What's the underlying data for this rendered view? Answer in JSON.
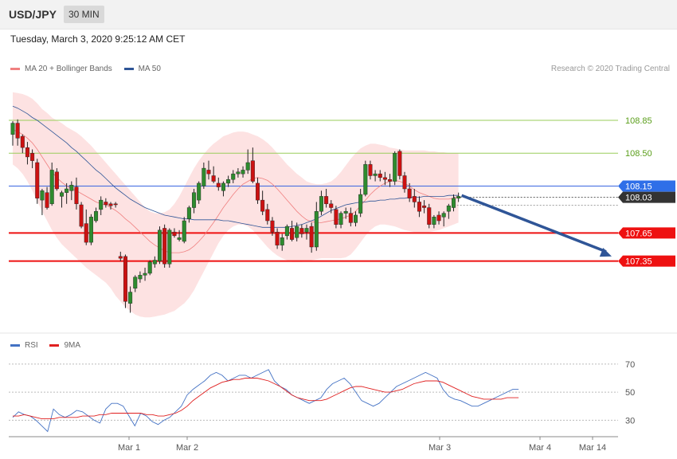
{
  "header": {
    "pair": "USD/JPY",
    "timeframe": "30 MIN"
  },
  "datetime": "Tuesday, March 3, 2020 9:25:12 AM CET",
  "legend": {
    "ma20": "MA 20 + Bollinger Bands",
    "ma50": "MA 50",
    "rsi": "RSI",
    "ma9": "9MA"
  },
  "credit": "Research © 2020 Trading Central",
  "colors": {
    "bull": "#2e8b2e",
    "bear": "#cc1111",
    "band": "#fde2e2",
    "ma20": "#f08080",
    "ma50": "#2f5597",
    "green_level": "#9acd5a",
    "red_level": "#ee1111",
    "blue_level": "#3a66e0",
    "arrow": "#2f5597",
    "rsi": "#4472c4",
    "rsi_ma": "#e02020"
  },
  "chart_data": [
    {
      "type": "candlestick",
      "ylim": [
        106.6,
        109.3
      ],
      "x_labels": [
        "Mar 1",
        "Mar 2",
        "Mar 3",
        "Mar 4",
        "Mar 14"
      ],
      "levels": [
        {
          "value": 108.85,
          "label": "108.85",
          "kind": "resistance"
        },
        {
          "value": 108.5,
          "label": "108.50",
          "kind": "resistance"
        },
        {
          "value": 108.15,
          "label": "108.15",
          "kind": "pivot"
        },
        {
          "value": 107.65,
          "label": "107.65",
          "kind": "support"
        },
        {
          "value": 107.35,
          "label": "107.35",
          "kind": "support"
        }
      ],
      "current_price": {
        "value": 108.03,
        "label": "108.03"
      },
      "forecast_arrow": {
        "from": 108.05,
        "to": 107.4
      },
      "candles": [
        [
          108.7,
          108.84,
          108.58,
          108.82
        ],
        [
          108.82,
          108.86,
          108.58,
          108.66
        ],
        [
          108.68,
          108.7,
          108.5,
          108.56
        ],
        [
          108.56,
          108.62,
          108.38,
          108.46
        ],
        [
          108.5,
          108.54,
          108.34,
          108.42
        ],
        [
          108.4,
          108.44,
          107.96,
          108.02
        ],
        [
          108.0,
          108.12,
          107.84,
          108.1
        ],
        [
          108.08,
          108.14,
          107.9,
          107.92
        ],
        [
          107.96,
          108.4,
          107.94,
          108.32
        ],
        [
          108.3,
          108.34,
          108.1,
          108.12
        ],
        [
          108.04,
          108.1,
          107.92,
          108.08
        ],
        [
          108.08,
          108.18,
          107.96,
          108.12
        ],
        [
          108.1,
          108.2,
          108.0,
          108.16
        ],
        [
          108.14,
          108.24,
          107.9,
          107.96
        ],
        [
          107.95,
          107.98,
          107.7,
          107.72
        ],
        [
          107.75,
          107.9,
          107.52,
          107.55
        ],
        [
          107.55,
          107.85,
          107.52,
          107.82
        ],
        [
          107.78,
          107.92,
          107.76,
          107.88
        ],
        [
          107.9,
          108.04,
          107.84,
          108.0
        ],
        [
          107.98,
          108.02,
          107.92,
          107.95
        ],
        [
          107.96,
          107.98,
          107.9,
          107.94
        ],
        [
          107.96,
          107.98,
          107.92,
          107.95
        ],
        [
          107.4,
          107.45,
          107.35,
          107.38
        ],
        [
          107.4,
          107.42,
          106.85,
          106.92
        ],
        [
          106.9,
          107.08,
          106.8,
          107.02
        ],
        [
          107.06,
          107.2,
          107.02,
          107.18
        ],
        [
          107.16,
          107.24,
          107.12,
          107.2
        ],
        [
          107.2,
          107.28,
          107.14,
          107.22
        ],
        [
          107.22,
          107.36,
          107.2,
          107.34
        ],
        [
          107.32,
          107.4,
          107.28,
          107.36
        ],
        [
          107.35,
          107.72,
          107.32,
          107.68
        ],
        [
          107.7,
          107.74,
          107.28,
          107.32
        ],
        [
          107.32,
          107.7,
          107.28,
          107.68
        ],
        [
          107.66,
          107.7,
          107.6,
          107.62
        ],
        [
          107.58,
          107.68,
          107.56,
          107.6
        ],
        [
          107.56,
          107.82,
          107.54,
          107.78
        ],
        [
          107.8,
          107.94,
          107.76,
          107.92
        ],
        [
          107.92,
          108.12,
          107.86,
          108.08
        ],
        [
          108.0,
          108.2,
          107.96,
          108.18
        ],
        [
          108.15,
          108.4,
          108.12,
          108.34
        ],
        [
          108.32,
          108.42,
          108.22,
          108.28
        ],
        [
          108.26,
          108.36,
          108.18,
          108.2
        ],
        [
          108.18,
          108.24,
          108.1,
          108.14
        ],
        [
          108.1,
          108.2,
          108.04,
          108.18
        ],
        [
          108.18,
          108.26,
          108.14,
          108.22
        ],
        [
          108.22,
          108.32,
          108.18,
          108.28
        ],
        [
          108.28,
          108.34,
          108.24,
          108.3
        ],
        [
          108.28,
          108.36,
          108.24,
          108.32
        ],
        [
          108.32,
          108.54,
          108.28,
          108.4
        ],
        [
          108.42,
          108.56,
          108.18,
          108.2
        ],
        [
          108.18,
          108.24,
          107.96,
          108.0
        ],
        [
          108.0,
          108.1,
          107.84,
          107.88
        ],
        [
          107.9,
          107.96,
          107.74,
          107.78
        ],
        [
          107.78,
          107.82,
          107.62,
          107.66
        ],
        [
          107.66,
          107.7,
          107.48,
          107.52
        ],
        [
          107.52,
          107.64,
          107.46,
          107.6
        ],
        [
          107.62,
          107.74,
          107.58,
          107.72
        ],
        [
          107.7,
          107.78,
          107.56,
          107.58
        ],
        [
          107.6,
          107.76,
          107.56,
          107.72
        ],
        [
          107.7,
          107.74,
          107.6,
          107.64
        ],
        [
          107.66,
          107.74,
          107.58,
          107.7
        ],
        [
          107.72,
          107.76,
          107.44,
          107.5
        ],
        [
          107.5,
          107.98,
          107.46,
          107.88
        ],
        [
          107.88,
          108.1,
          107.84,
          108.04
        ],
        [
          108.04,
          108.12,
          107.92,
          107.96
        ],
        [
          107.96,
          108.0,
          107.86,
          107.92
        ],
        [
          107.9,
          107.94,
          107.7,
          107.74
        ],
        [
          107.74,
          107.88,
          107.7,
          107.86
        ],
        [
          107.86,
          107.92,
          107.8,
          107.88
        ],
        [
          107.86,
          107.92,
          107.72,
          107.76
        ],
        [
          107.76,
          107.88,
          107.72,
          107.84
        ],
        [
          107.86,
          108.12,
          107.82,
          108.06
        ],
        [
          108.06,
          108.42,
          108.04,
          108.38
        ],
        [
          108.38,
          108.42,
          108.22,
          108.26
        ],
        [
          108.26,
          108.32,
          108.2,
          108.28
        ],
        [
          108.28,
          108.32,
          108.2,
          108.24
        ],
        [
          108.24,
          108.3,
          108.16,
          108.22
        ],
        [
          108.22,
          108.28,
          108.14,
          108.2
        ],
        [
          108.2,
          108.52,
          108.16,
          108.5
        ],
        [
          108.52,
          108.54,
          108.22,
          108.26
        ],
        [
          108.26,
          108.3,
          108.08,
          108.12
        ],
        [
          108.12,
          108.18,
          107.98,
          108.02
        ],
        [
          108.04,
          108.12,
          107.92,
          107.98
        ],
        [
          107.98,
          108.04,
          107.82,
          107.88
        ],
        [
          107.94,
          108.0,
          107.86,
          107.92
        ],
        [
          107.92,
          107.96,
          107.7,
          107.74
        ],
        [
          107.74,
          107.84,
          107.7,
          107.82
        ],
        [
          107.84,
          107.88,
          107.74,
          107.78
        ],
        [
          107.82,
          107.88,
          107.72,
          107.86
        ],
        [
          107.88,
          107.96,
          107.8,
          107.94
        ],
        [
          107.92,
          108.06,
          107.88,
          108.02
        ],
        [
          108.02,
          108.08,
          107.98,
          108.04
        ]
      ],
      "ma20": [
        108.75,
        108.73,
        108.7,
        108.66,
        108.61,
        108.54,
        108.46,
        108.38,
        108.3,
        108.24,
        108.19,
        108.15,
        108.12,
        108.1,
        108.07,
        108.04,
        108.01,
        107.98,
        107.96,
        107.95,
        107.92,
        107.89,
        107.85,
        107.8,
        107.76,
        107.71,
        107.66,
        107.61,
        107.56,
        107.52,
        107.49,
        107.46,
        107.44,
        107.44,
        107.44,
        107.45,
        107.47,
        107.51,
        107.56,
        107.62,
        107.69,
        107.76,
        107.84,
        107.92,
        107.99,
        108.06,
        108.12,
        108.17,
        108.2,
        108.23,
        108.24,
        108.23,
        108.21,
        108.17,
        108.12,
        108.06,
        108.0,
        107.94,
        107.88,
        107.83,
        107.79,
        107.77,
        107.76,
        107.76,
        107.77,
        107.78,
        107.79,
        107.8,
        107.82,
        107.84,
        107.88,
        107.94,
        108.0,
        108.06,
        108.11,
        108.15,
        108.18,
        108.2,
        108.21,
        108.2,
        108.18,
        108.15,
        108.11,
        108.08,
        108.06,
        108.04,
        108.02,
        108.01,
        108.01,
        108.01,
        108.02,
        108.03
      ],
      "bb_upper": [
        109.15,
        109.14,
        109.13,
        109.11,
        109.08,
        109.03,
        108.97,
        108.93,
        108.88,
        108.85,
        108.82,
        108.78,
        108.75,
        108.72,
        108.68,
        108.63,
        108.58,
        108.52,
        108.46,
        108.4,
        108.34,
        108.28,
        108.22,
        108.16,
        108.1,
        108.04,
        107.98,
        107.92,
        107.88,
        107.86,
        107.86,
        107.87,
        107.9,
        107.96,
        108.04,
        108.14,
        108.24,
        108.34,
        108.42,
        108.49,
        108.55,
        108.6,
        108.64,
        108.68,
        108.7,
        108.72,
        108.73,
        108.73,
        108.72,
        108.7,
        108.68,
        108.65,
        108.61,
        108.56,
        108.5,
        108.44,
        108.38,
        108.33,
        108.28,
        108.24,
        108.2,
        108.18,
        108.17,
        108.17,
        108.18,
        108.2,
        108.24,
        108.3,
        108.37,
        108.44,
        108.5,
        108.55,
        108.58,
        108.6,
        108.6,
        108.59,
        108.58,
        108.56,
        108.55,
        108.54,
        108.53,
        108.53,
        108.53,
        108.53,
        108.53,
        108.52,
        108.52,
        108.51,
        108.51,
        108.5,
        108.5,
        108.5
      ],
      "bb_lower": [
        108.38,
        108.34,
        108.28,
        108.2,
        108.1,
        107.99,
        107.88,
        107.78,
        107.68,
        107.6,
        107.53,
        107.48,
        107.43,
        107.38,
        107.33,
        107.28,
        107.24,
        107.2,
        107.16,
        107.12,
        107.06,
        106.98,
        106.92,
        106.86,
        106.82,
        106.78,
        106.76,
        106.75,
        106.75,
        106.76,
        106.77,
        106.78,
        106.8,
        106.82,
        106.86,
        106.9,
        106.96,
        107.04,
        107.14,
        107.24,
        107.34,
        107.44,
        107.54,
        107.62,
        107.68,
        107.72,
        107.74,
        107.74,
        107.72,
        107.68,
        107.62,
        107.56,
        107.5,
        107.45,
        107.41,
        107.38,
        107.36,
        107.34,
        107.34,
        107.34,
        107.35,
        107.36,
        107.37,
        107.38,
        107.38,
        107.38,
        107.38,
        107.38,
        107.39,
        107.42,
        107.48,
        107.55,
        107.62,
        107.68,
        107.72,
        107.74,
        107.74,
        107.73,
        107.72,
        107.7,
        107.68,
        107.67,
        107.66,
        107.66,
        107.66,
        107.66,
        107.67,
        107.68,
        107.7,
        107.72,
        107.74,
        107.76
      ],
      "ma50": [
        109.0,
        108.98,
        108.95,
        108.92,
        108.88,
        108.85,
        108.81,
        108.77,
        108.73,
        108.69,
        108.65,
        108.61,
        108.56,
        108.52,
        108.47,
        108.42,
        108.37,
        108.32,
        108.28,
        108.23,
        108.18,
        108.13,
        108.09,
        108.05,
        108.01,
        107.98,
        107.95,
        107.92,
        107.9,
        107.88,
        107.86,
        107.84,
        107.83,
        107.82,
        107.81,
        107.8,
        107.8,
        107.79,
        107.79,
        107.79,
        107.79,
        107.79,
        107.79,
        107.78,
        107.78,
        107.77,
        107.76,
        107.75,
        107.74,
        107.73,
        107.72,
        107.71,
        107.71,
        107.71,
        107.71,
        107.71,
        107.71,
        107.72,
        107.73,
        107.74,
        107.76,
        107.78,
        107.8,
        107.83,
        107.86,
        107.89,
        107.91,
        107.93,
        107.95,
        107.96,
        107.97,
        107.98,
        107.98,
        107.99,
        107.99,
        108.0,
        108.0,
        108.01,
        108.01,
        108.02,
        108.02,
        108.03,
        108.03,
        108.03,
        108.04,
        108.04,
        108.04,
        108.04,
        108.04,
        108.05,
        108.05,
        108.05
      ]
    },
    {
      "type": "line",
      "ylim": [
        20,
        75
      ],
      "y_ticks": [
        30,
        50,
        70
      ],
      "series": [
        {
          "name": "RSI",
          "values": [
            32,
            36,
            34,
            33,
            30,
            26,
            22,
            38,
            34,
            32,
            34,
            37,
            36,
            33,
            30,
            28,
            38,
            42,
            42,
            40,
            33,
            26,
            35,
            33,
            29,
            27,
            30,
            32,
            36,
            40,
            48,
            52,
            55,
            58,
            62,
            64,
            62,
            58,
            60,
            62,
            62,
            60,
            62,
            64,
            66,
            58,
            54,
            52,
            48,
            46,
            44,
            42,
            44,
            46,
            52,
            56,
            58,
            60,
            56,
            50,
            44,
            42,
            40,
            42,
            46,
            50,
            54,
            56,
            58,
            60,
            62,
            64,
            62,
            60,
            52,
            47,
            45,
            44,
            42,
            40,
            40,
            42,
            44,
            46,
            48,
            50,
            52,
            52
          ]
        },
        {
          "name": "9MA",
          "values": [
            33,
            33,
            34,
            33,
            32,
            31,
            31,
            31,
            32,
            32,
            32,
            32,
            33,
            33,
            33,
            34,
            34,
            35,
            35,
            35,
            35,
            35,
            35,
            34,
            34,
            33,
            33,
            34,
            35,
            37,
            40,
            44,
            47,
            50,
            53,
            55,
            57,
            58,
            59,
            59,
            60,
            60,
            60,
            59,
            58,
            56,
            54,
            51,
            48,
            46,
            45,
            44,
            44,
            44,
            45,
            47,
            49,
            51,
            53,
            54,
            54,
            53,
            52,
            51,
            50,
            50,
            51,
            52,
            54,
            56,
            57,
            58,
            58,
            58,
            57,
            55,
            53,
            51,
            49,
            47,
            46,
            45,
            45,
            45,
            45,
            46,
            46,
            46
          ]
        }
      ]
    }
  ]
}
